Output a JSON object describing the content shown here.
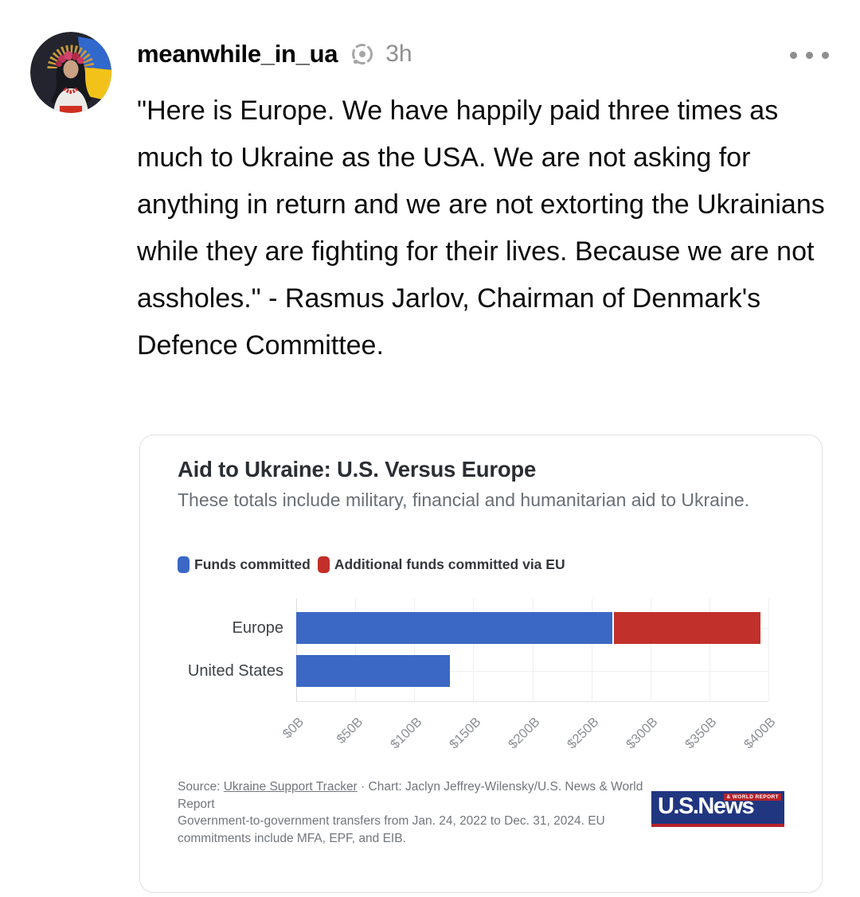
{
  "post": {
    "username": "meanwhile_in_ua",
    "timestamp": "3h",
    "body": "\"Here is Europe. We have happily paid three times as much to Ukraine as the USA. We are not asking for anything in return and we are not extorting the Ukrainians while they are fighting for their lives. Because we are not assholes.\" - Rasmus Jarlov, Chairman of Denmark's Defence Committee."
  },
  "chart_card": {
    "title": "Aid to Ukraine: U.S. Versus Europe",
    "subtitle": "These totals include military, financial and humanitarian aid to Ukraine.",
    "source_prefix": "Source: ",
    "source_link": "Ukraine Support Tracker",
    "source_rest": " · Chart: Jaclyn Jeffrey-Wilensky/U.S. News & World Report",
    "source_note": "Government-to-government transfers from Jan. 24, 2022 to Dec. 31, 2024. EU commitments include MFA, EPF, and EIB.",
    "logo_text": "U.S.News",
    "logo_tagline": "& WORLD REPORT"
  },
  "chart_data": {
    "type": "bar",
    "orientation": "horizontal",
    "title": "Aid to Ukraine: U.S. Versus Europe",
    "subtitle": "These totals include military, financial and humanitarian aid to Ukraine.",
    "categories": [
      "Europe",
      "United States"
    ],
    "series": [
      {
        "name": "Funds committed",
        "color": "#3a68c4",
        "values": [
          268,
          130
        ]
      },
      {
        "name": "Additional funds committed via EU",
        "color": "#c1302b",
        "values": [
          125,
          0
        ]
      }
    ],
    "value_unit": "USD billions",
    "xlim": [
      0,
      400
    ],
    "x_tick_values": [
      0,
      50,
      100,
      150,
      200,
      250,
      300,
      350,
      400
    ],
    "x_tick_labels": [
      "$0B",
      "$50B",
      "$100B",
      "$150B",
      "$200B",
      "$250B",
      "$300B",
      "$350B",
      "$400B"
    ],
    "grid": true,
    "legend_position": "top-left"
  },
  "colors": {
    "bar_blue": "#3a68c4",
    "bar_red": "#c1302b",
    "logo_navy": "#20367f",
    "logo_red": "#b5232a"
  }
}
